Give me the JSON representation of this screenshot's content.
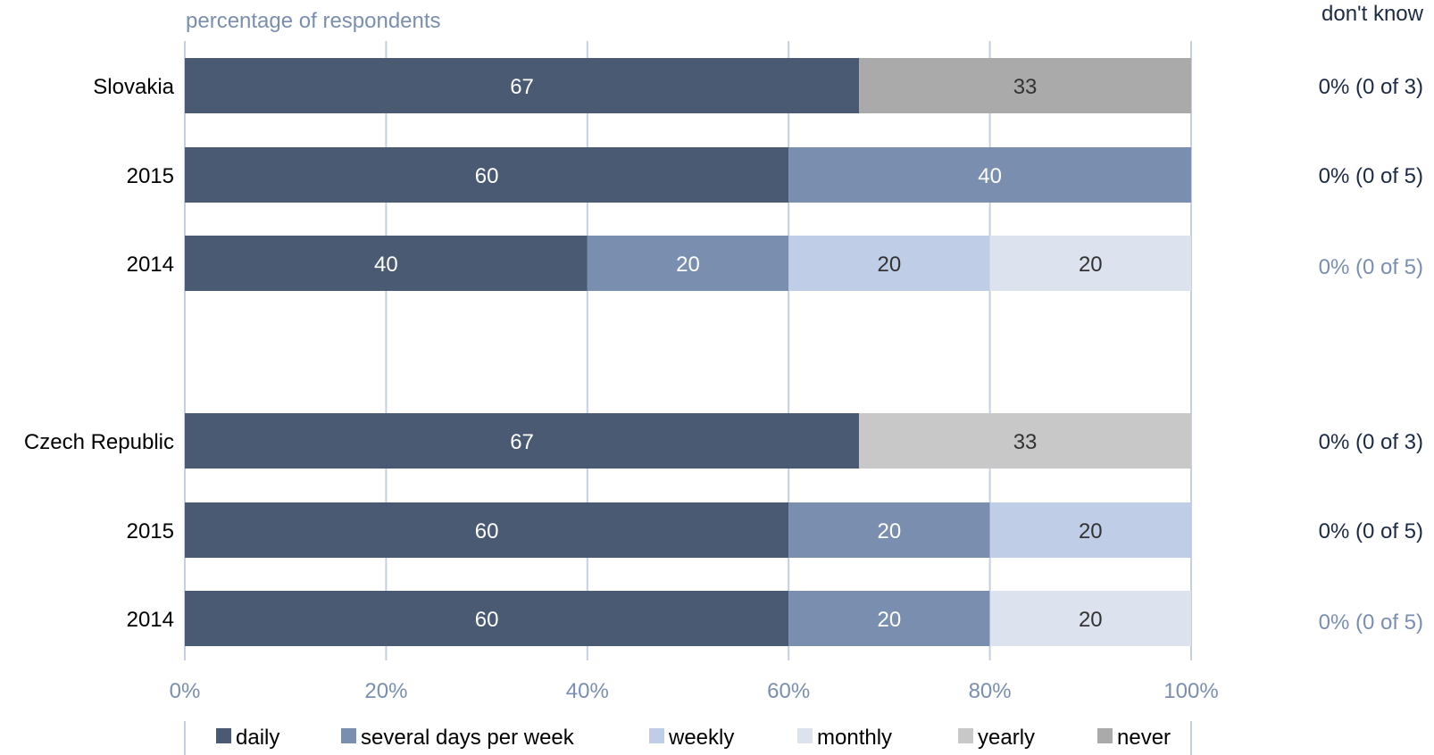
{
  "chart_data": {
    "type": "bar",
    "orientation": "horizontal",
    "stacked": true,
    "axis_title": "percentage of respondents",
    "side_header": "don't know",
    "x_ticks": [
      "0%",
      "20%",
      "40%",
      "60%",
      "80%",
      "100%"
    ],
    "xlim": [
      0,
      100
    ],
    "grid": true,
    "legend_position": "bottom",
    "series": [
      {
        "name": "daily",
        "color": "#4a5a73"
      },
      {
        "name": "several days per week",
        "color": "#7a8fb0"
      },
      {
        "name": "weekly",
        "color": "#bfcde6"
      },
      {
        "name": "monthly",
        "color": "#dde2ef"
      },
      {
        "name": "yearly",
        "color": "#c8c8c8"
      },
      {
        "name": "never",
        "color": "#aaaaaa"
      }
    ],
    "rows": [
      {
        "label": "Slovakia",
        "segments": [
          {
            "series": "daily",
            "value": 67
          },
          {
            "series": "never",
            "value": 33
          }
        ],
        "dont_know": "0% (0 of 3)",
        "dont_know_muted": false
      },
      {
        "label": "2015",
        "segments": [
          {
            "series": "daily",
            "value": 60
          },
          {
            "series": "several days per week",
            "value": 40
          }
        ],
        "dont_know": "0% (0 of 5)",
        "dont_know_muted": false
      },
      {
        "label": "2014",
        "segments": [
          {
            "series": "daily",
            "value": 40
          },
          {
            "series": "several days per week",
            "value": 20
          },
          {
            "series": "weekly",
            "value": 20
          },
          {
            "series": "monthly",
            "value": 20
          }
        ],
        "dont_know": "0% (0 of 5)",
        "dont_know_muted": true
      },
      {
        "label": "Czech Republic",
        "segments": [
          {
            "series": "daily",
            "value": 67
          },
          {
            "series": "yearly",
            "value": 33
          }
        ],
        "dont_know": "0% (0 of 3)",
        "dont_know_muted": false
      },
      {
        "label": "2015",
        "segments": [
          {
            "series": "daily",
            "value": 60
          },
          {
            "series": "several days per week",
            "value": 20
          },
          {
            "series": "weekly",
            "value": 20
          }
        ],
        "dont_know": "0% (0 of 5)",
        "dont_know_muted": false
      },
      {
        "label": "2014",
        "segments": [
          {
            "series": "daily",
            "value": 60
          },
          {
            "series": "several days per week",
            "value": 20
          },
          {
            "series": "monthly",
            "value": 20
          }
        ],
        "dont_know": "0% (0 of 5)",
        "dont_know_muted": true
      }
    ],
    "colors": {
      "axis_text": "#7a8fb0",
      "grid": "#c5cfe2",
      "label_text": "#000000",
      "side_text": "#1c2a45",
      "side_text_muted": "#7a8fb0",
      "light_value_text": "#ffffff",
      "dark_value_text": "#333333"
    }
  }
}
